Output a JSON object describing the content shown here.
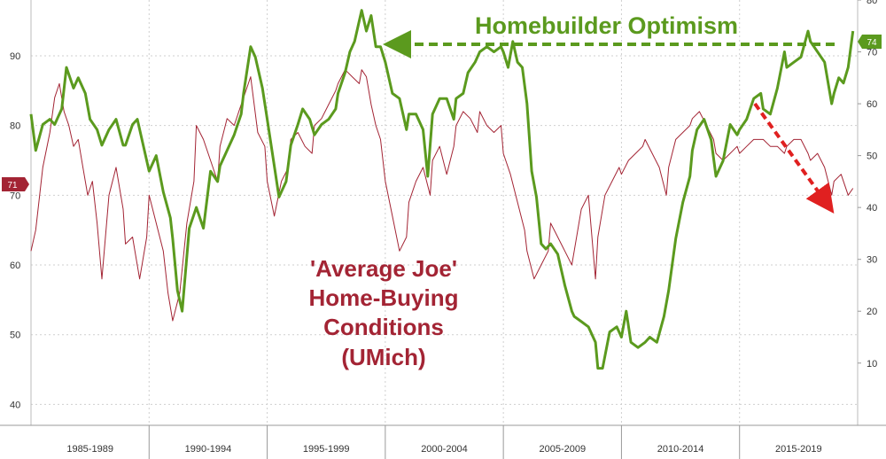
{
  "chart_data": {
    "type": "line",
    "x_unit": "year",
    "grid": true,
    "left_axis": {
      "ylim": [
        37,
        98
      ],
      "ticks": [
        40,
        50,
        60,
        70,
        80,
        90
      ]
    },
    "right_axis": {
      "ylim": [
        -2,
        80
      ],
      "ticks": [
        10,
        20,
        30,
        40,
        50,
        60,
        70,
        80
      ]
    },
    "periods": [
      {
        "label": "1985-1989",
        "start": 1985,
        "end": 1990
      },
      {
        "label": "1990-1994",
        "start": 1990,
        "end": 1995
      },
      {
        "label": "1995-1999",
        "start": 1995,
        "end": 2000
      },
      {
        "label": "2000-2004",
        "start": 2000,
        "end": 2005
      },
      {
        "label": "2005-2009",
        "start": 2005,
        "end": 2010
      },
      {
        "label": "2010-2014",
        "start": 2010,
        "end": 2015
      },
      {
        "label": "2015-2019",
        "start": 2015,
        "end": 2020
      }
    ],
    "series": [
      {
        "name": "Homebuilder Optimism",
        "axis": "right",
        "color": "#5b9a1e",
        "last_value_label": "74",
        "points": [
          [
            1985.0,
            58
          ],
          [
            1985.2,
            51
          ],
          [
            1985.5,
            56
          ],
          [
            1985.8,
            57
          ],
          [
            1986.0,
            56
          ],
          [
            1986.3,
            59
          ],
          [
            1986.5,
            67
          ],
          [
            1986.8,
            63
          ],
          [
            1987.0,
            65
          ],
          [
            1987.3,
            62
          ],
          [
            1987.5,
            57
          ],
          [
            1987.8,
            55
          ],
          [
            1988.0,
            52
          ],
          [
            1988.3,
            55
          ],
          [
            1988.6,
            57
          ],
          [
            1988.9,
            52
          ],
          [
            1989.0,
            52
          ],
          [
            1989.3,
            56
          ],
          [
            1989.5,
            57
          ],
          [
            1989.8,
            51
          ],
          [
            1990.0,
            47
          ],
          [
            1990.3,
            50
          ],
          [
            1990.6,
            43
          ],
          [
            1990.9,
            38
          ],
          [
            1991.0,
            34
          ],
          [
            1991.2,
            24
          ],
          [
            1991.4,
            20
          ],
          [
            1991.7,
            36
          ],
          [
            1992.0,
            40
          ],
          [
            1992.3,
            36
          ],
          [
            1992.6,
            47
          ],
          [
            1992.9,
            45
          ],
          [
            1993.0,
            48
          ],
          [
            1993.3,
            51
          ],
          [
            1993.6,
            54
          ],
          [
            1993.9,
            58
          ],
          [
            1994.0,
            62
          ],
          [
            1994.3,
            71
          ],
          [
            1994.5,
            69
          ],
          [
            1994.8,
            63
          ],
          [
            1995.0,
            57
          ],
          [
            1995.3,
            48
          ],
          [
            1995.5,
            42
          ],
          [
            1995.8,
            45
          ],
          [
            1996.0,
            52
          ],
          [
            1996.3,
            56
          ],
          [
            1996.5,
            59
          ],
          [
            1996.8,
            57
          ],
          [
            1997.0,
            54
          ],
          [
            1997.3,
            56
          ],
          [
            1997.6,
            57
          ],
          [
            1997.9,
            59
          ],
          [
            1998.0,
            62
          ],
          [
            1998.3,
            66
          ],
          [
            1998.5,
            70
          ],
          [
            1998.7,
            72
          ],
          [
            1998.9,
            76
          ],
          [
            1999.0,
            78
          ],
          [
            1999.2,
            74
          ],
          [
            1999.4,
            77
          ],
          [
            1999.6,
            71
          ],
          [
            1999.8,
            71
          ],
          [
            2000.0,
            68
          ],
          [
            2000.3,
            62
          ],
          [
            2000.6,
            61
          ],
          [
            2000.9,
            55
          ],
          [
            2001.0,
            58
          ],
          [
            2001.3,
            58
          ],
          [
            2001.6,
            55
          ],
          [
            2001.8,
            46
          ],
          [
            2002.0,
            58
          ],
          [
            2002.3,
            61
          ],
          [
            2002.6,
            61
          ],
          [
            2002.9,
            57
          ],
          [
            2003.0,
            61
          ],
          [
            2003.3,
            62
          ],
          [
            2003.5,
            66
          ],
          [
            2003.8,
            68
          ],
          [
            2004.0,
            70
          ],
          [
            2004.3,
            71
          ],
          [
            2004.6,
            70
          ],
          [
            2004.9,
            71
          ],
          [
            2005.0,
            70
          ],
          [
            2005.2,
            67
          ],
          [
            2005.4,
            72
          ],
          [
            2005.6,
            68
          ],
          [
            2005.8,
            67
          ],
          [
            2006.0,
            60
          ],
          [
            2006.2,
            47
          ],
          [
            2006.4,
            42
          ],
          [
            2006.6,
            33
          ],
          [
            2006.8,
            32
          ],
          [
            2007.0,
            33
          ],
          [
            2007.3,
            31
          ],
          [
            2007.6,
            25
          ],
          [
            2007.9,
            20
          ],
          [
            2008.0,
            19
          ],
          [
            2008.3,
            18
          ],
          [
            2008.6,
            17
          ],
          [
            2008.9,
            14
          ],
          [
            2009.0,
            9
          ],
          [
            2009.2,
            9
          ],
          [
            2009.5,
            16
          ],
          [
            2009.8,
            17
          ],
          [
            2010.0,
            15
          ],
          [
            2010.2,
            20
          ],
          [
            2010.4,
            14
          ],
          [
            2010.7,
            13
          ],
          [
            2011.0,
            14
          ],
          [
            2011.2,
            15
          ],
          [
            2011.5,
            14
          ],
          [
            2011.8,
            19
          ],
          [
            2012.0,
            24
          ],
          [
            2012.3,
            34
          ],
          [
            2012.6,
            41
          ],
          [
            2012.9,
            46
          ],
          [
            2013.0,
            51
          ],
          [
            2013.2,
            55
          ],
          [
            2013.5,
            57
          ],
          [
            2013.8,
            53
          ],
          [
            2014.0,
            46
          ],
          [
            2014.3,
            49
          ],
          [
            2014.6,
            56
          ],
          [
            2014.9,
            54
          ],
          [
            2015.0,
            55
          ],
          [
            2015.3,
            57
          ],
          [
            2015.6,
            61
          ],
          [
            2015.9,
            62
          ],
          [
            2016.0,
            59
          ],
          [
            2016.3,
            58
          ],
          [
            2016.6,
            63
          ],
          [
            2016.9,
            70
          ],
          [
            2017.0,
            67
          ],
          [
            2017.3,
            68
          ],
          [
            2017.6,
            69
          ],
          [
            2017.9,
            74
          ],
          [
            2018.0,
            72
          ],
          [
            2018.3,
            70
          ],
          [
            2018.6,
            68
          ],
          [
            2018.9,
            60
          ],
          [
            2019.0,
            62
          ],
          [
            2019.2,
            65
          ],
          [
            2019.4,
            64
          ],
          [
            2019.6,
            67
          ],
          [
            2019.8,
            74
          ]
        ]
      },
      {
        "name": "'Average Joe' Home-Buying Conditions (UMich)",
        "axis": "left",
        "color": "#a32434",
        "last_value_label": "71",
        "points": [
          [
            1985.0,
            62
          ],
          [
            1985.2,
            65
          ],
          [
            1985.5,
            74
          ],
          [
            1985.8,
            79
          ],
          [
            1986.0,
            84
          ],
          [
            1986.2,
            86
          ],
          [
            1986.4,
            82
          ],
          [
            1986.6,
            80
          ],
          [
            1986.8,
            77
          ],
          [
            1987.0,
            78
          ],
          [
            1987.2,
            74
          ],
          [
            1987.4,
            70
          ],
          [
            1987.6,
            72
          ],
          [
            1987.8,
            66
          ],
          [
            1988.0,
            58
          ],
          [
            1988.3,
            70
          ],
          [
            1988.6,
            74
          ],
          [
            1988.9,
            68
          ],
          [
            1989.0,
            63
          ],
          [
            1989.3,
            64
          ],
          [
            1989.6,
            58
          ],
          [
            1989.9,
            64
          ],
          [
            1990.0,
            70
          ],
          [
            1990.3,
            66
          ],
          [
            1990.6,
            62
          ],
          [
            1990.8,
            56
          ],
          [
            1991.0,
            52
          ],
          [
            1991.3,
            56
          ],
          [
            1991.6,
            66
          ],
          [
            1991.9,
            72
          ],
          [
            1992.0,
            80
          ],
          [
            1992.3,
            78
          ],
          [
            1992.6,
            75
          ],
          [
            1992.9,
            72
          ],
          [
            1993.0,
            77
          ],
          [
            1993.3,
            81
          ],
          [
            1993.6,
            80
          ],
          [
            1993.9,
            83
          ],
          [
            1994.0,
            84
          ],
          [
            1994.3,
            87
          ],
          [
            1994.6,
            79
          ],
          [
            1994.9,
            77
          ],
          [
            1995.0,
            72
          ],
          [
            1995.3,
            67
          ],
          [
            1995.6,
            72
          ],
          [
            1995.9,
            74
          ],
          [
            1996.0,
            78
          ],
          [
            1996.3,
            79
          ],
          [
            1996.6,
            77
          ],
          [
            1996.9,
            76
          ],
          [
            1997.0,
            80
          ],
          [
            1997.3,
            81
          ],
          [
            1997.6,
            83
          ],
          [
            1997.9,
            85
          ],
          [
            1998.0,
            86
          ],
          [
            1998.3,
            88
          ],
          [
            1998.6,
            87
          ],
          [
            1998.9,
            86
          ],
          [
            1999.0,
            88
          ],
          [
            1999.2,
            87
          ],
          [
            1999.4,
            83
          ],
          [
            1999.6,
            80
          ],
          [
            1999.8,
            78
          ],
          [
            2000.0,
            72
          ],
          [
            2000.3,
            67
          ],
          [
            2000.6,
            62
          ],
          [
            2000.9,
            64
          ],
          [
            2001.0,
            69
          ],
          [
            2001.3,
            72
          ],
          [
            2001.6,
            74
          ],
          [
            2001.9,
            70
          ],
          [
            2002.0,
            75
          ],
          [
            2002.3,
            77
          ],
          [
            2002.6,
            73
          ],
          [
            2002.9,
            77
          ],
          [
            2003.0,
            80
          ],
          [
            2003.3,
            82
          ],
          [
            2003.6,
            81
          ],
          [
            2003.9,
            79
          ],
          [
            2004.0,
            82
          ],
          [
            2004.3,
            80
          ],
          [
            2004.6,
            79
          ],
          [
            2004.9,
            80
          ],
          [
            2005.0,
            76
          ],
          [
            2005.3,
            73
          ],
          [
            2005.6,
            69
          ],
          [
            2005.9,
            65
          ],
          [
            2006.0,
            62
          ],
          [
            2006.3,
            58
          ],
          [
            2006.6,
            60
          ],
          [
            2006.9,
            62
          ],
          [
            2007.0,
            66
          ],
          [
            2007.3,
            64
          ],
          [
            2007.6,
            62
          ],
          [
            2007.9,
            60
          ],
          [
            2008.0,
            62
          ],
          [
            2008.3,
            68
          ],
          [
            2008.6,
            70
          ],
          [
            2008.9,
            58
          ],
          [
            2009.0,
            64
          ],
          [
            2009.3,
            70
          ],
          [
            2009.6,
            72
          ],
          [
            2009.9,
            74
          ],
          [
            2010.0,
            73
          ],
          [
            2010.3,
            75
          ],
          [
            2010.6,
            76
          ],
          [
            2010.9,
            77
          ],
          [
            2011.0,
            78
          ],
          [
            2011.3,
            76
          ],
          [
            2011.6,
            74
          ],
          [
            2011.9,
            70
          ],
          [
            2012.0,
            74
          ],
          [
            2012.3,
            78
          ],
          [
            2012.6,
            79
          ],
          [
            2012.9,
            80
          ],
          [
            2013.0,
            81
          ],
          [
            2013.3,
            82
          ],
          [
            2013.6,
            80
          ],
          [
            2013.9,
            78
          ],
          [
            2014.0,
            76
          ],
          [
            2014.3,
            75
          ],
          [
            2014.6,
            76
          ],
          [
            2014.9,
            77
          ],
          [
            2015.0,
            76
          ],
          [
            2015.3,
            77
          ],
          [
            2015.6,
            78
          ],
          [
            2015.9,
            78
          ],
          [
            2016.0,
            78
          ],
          [
            2016.3,
            77
          ],
          [
            2016.6,
            77
          ],
          [
            2016.9,
            76
          ],
          [
            2017.0,
            77
          ],
          [
            2017.3,
            78
          ],
          [
            2017.6,
            78
          ],
          [
            2017.9,
            76
          ],
          [
            2018.0,
            75
          ],
          [
            2018.3,
            76
          ],
          [
            2018.6,
            74
          ],
          [
            2018.9,
            70
          ],
          [
            2019.0,
            72
          ],
          [
            2019.3,
            73
          ],
          [
            2019.6,
            70
          ],
          [
            2019.8,
            71
          ]
        ]
      }
    ],
    "annotations": {
      "green_label": "Homebuilder Optimism",
      "red_label_lines": [
        "'Average Joe'",
        "Home-Buying",
        "Conditions",
        "(UMich)"
      ]
    }
  }
}
